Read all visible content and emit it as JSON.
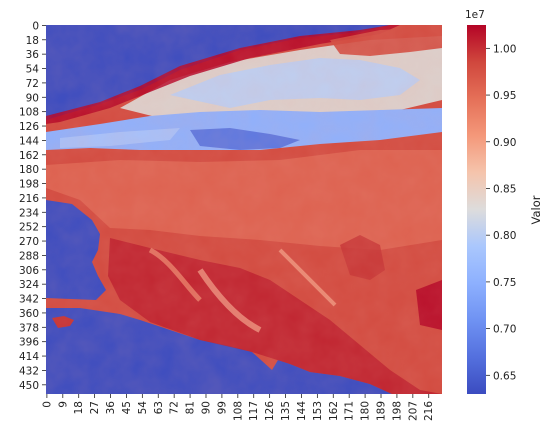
{
  "chart_data": {
    "type": "heatmap",
    "colormap": "coolwarm",
    "grid": false,
    "n_rows": 462,
    "n_cols": 224,
    "x_ticks": [
      "0",
      "9",
      "18",
      "27",
      "36",
      "45",
      "54",
      "63",
      "72",
      "81",
      "90",
      "99",
      "108",
      "117",
      "126",
      "135",
      "144",
      "153",
      "162",
      "171",
      "180",
      "189",
      "198",
      "207",
      "216"
    ],
    "y_ticks": [
      "0",
      "18",
      "36",
      "54",
      "72",
      "90",
      "108",
      "126",
      "144",
      "162",
      "180",
      "198",
      "216",
      "234",
      "252",
      "270",
      "288",
      "306",
      "324",
      "342",
      "360",
      "378",
      "396",
      "414",
      "432",
      "450"
    ],
    "colorbar": {
      "label": "Valor",
      "multiplier": "1e7",
      "vmin": 6.3,
      "vmax": 10.25,
      "ticks": [
        "0.65",
        "0.70",
        "0.75",
        "0.80",
        "0.85",
        "0.90",
        "0.95",
        "1.00"
      ],
      "tick_values": [
        6.5,
        7.0,
        7.5,
        8.0,
        8.5,
        9.0,
        9.5,
        10.0
      ]
    },
    "summary_regions": [
      {
        "region": "left/bottom masked area",
        "value": 6.3
      },
      {
        "region": "blue band rows 108-162",
        "value": 7.0
      },
      {
        "region": "upper band rows 36-100",
        "value": 8.3
      },
      {
        "region": "main body rows 180-462",
        "value": 9.8
      }
    ]
  },
  "colors": {
    "cmap_low": "#3b4cc0",
    "cmap_mid": "#dddcdc",
    "cmap_high": "#b40426"
  }
}
